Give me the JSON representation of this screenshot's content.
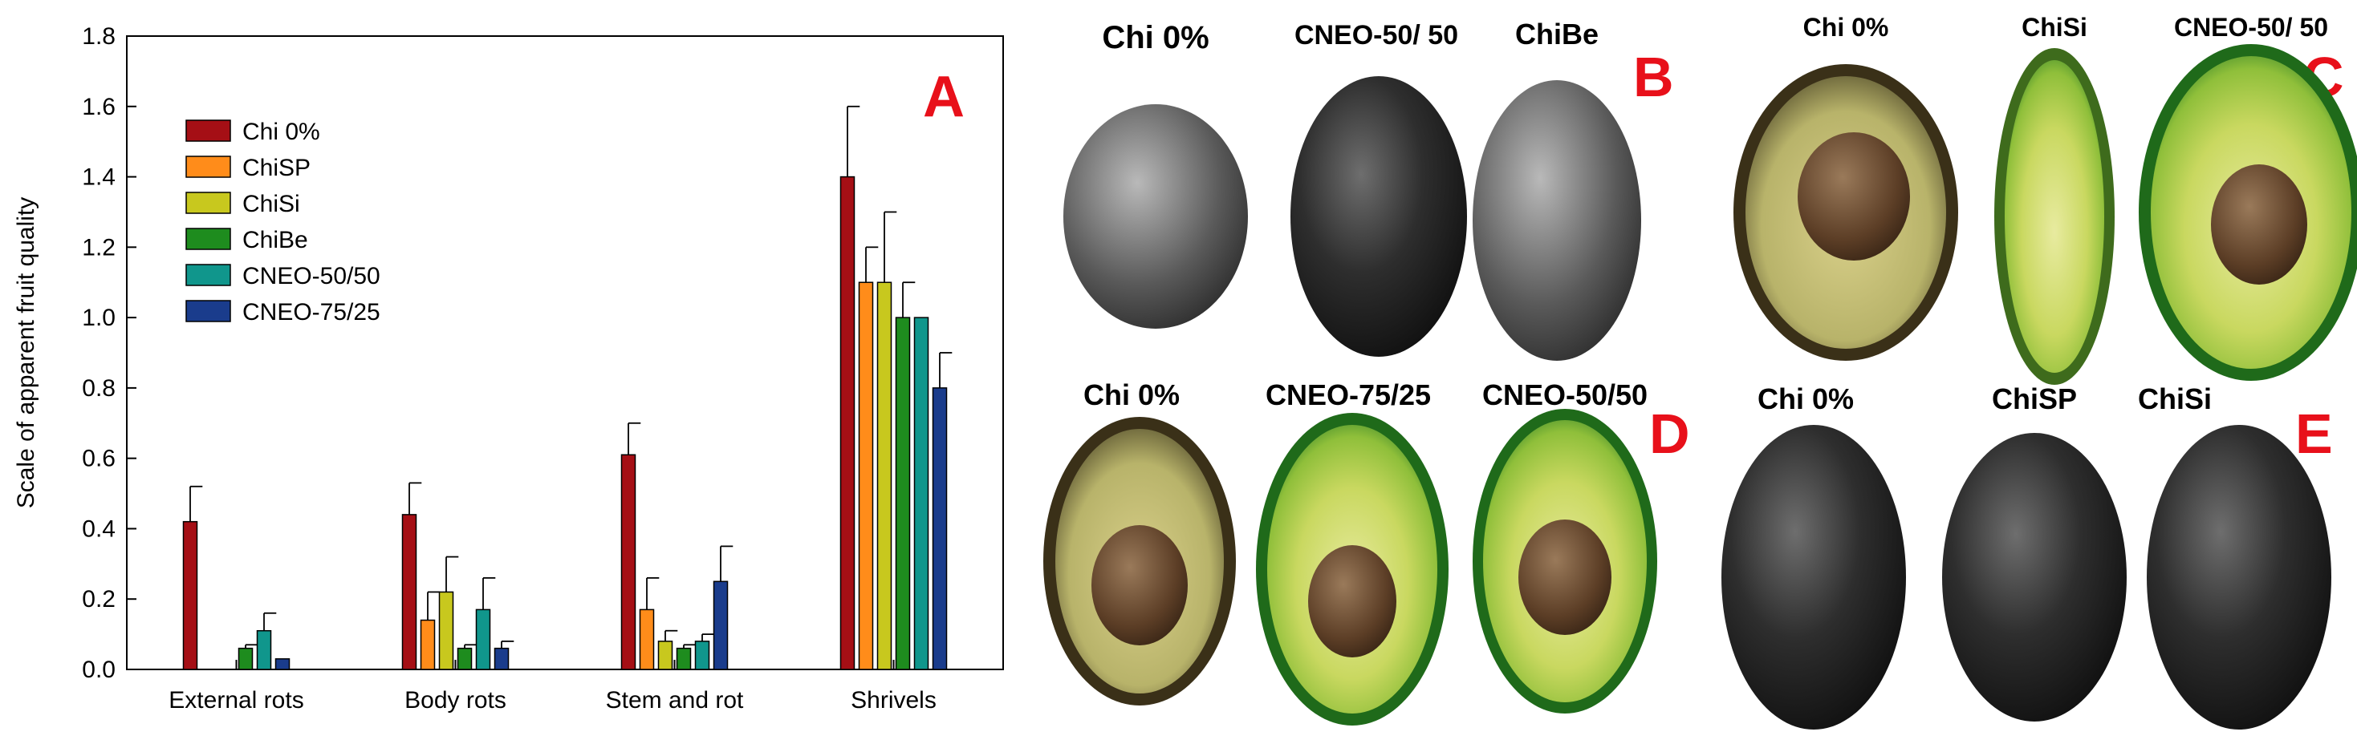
{
  "chart_data": {
    "type": "bar",
    "panel_letter": "A",
    "ylabel": "Scale of apparent fruit quality",
    "xlabel": "",
    "ylim": [
      0,
      1.8
    ],
    "yticks": [
      "0.0",
      "0.2",
      "0.4",
      "0.6",
      "0.8",
      "1.0",
      "1.2",
      "1.4",
      "1.6",
      "1.8"
    ],
    "categories": [
      "External rots",
      "Body rots",
      "Stem and rot",
      "Shrivels"
    ],
    "series": [
      {
        "name": "Chi 0%",
        "color": "#a50f15",
        "values": [
          0.42,
          0.44,
          0.61,
          1.4
        ],
        "errors": [
          0.1,
          0.09,
          0.09,
          0.2
        ]
      },
      {
        "name": "ChiSP",
        "color": "#ff8c1a",
        "values": [
          0.0,
          0.14,
          0.17,
          1.1
        ],
        "errors": [
          0.0,
          0.08,
          0.09,
          0.1
        ]
      },
      {
        "name": "ChiSi",
        "color": "#c8c81e",
        "values": [
          0.0,
          0.22,
          0.08,
          1.1
        ],
        "errors": [
          0.0,
          0.1,
          0.03,
          0.2
        ]
      },
      {
        "name": "ChiBe",
        "color": "#1e8c1e",
        "values": [
          0.06,
          0.06,
          0.06,
          1.0
        ],
        "errors": [
          0.01,
          0.01,
          0.01,
          0.1
        ]
      },
      {
        "name": "CNEO-50/50",
        "color": "#10968c",
        "values": [
          0.11,
          0.17,
          0.08,
          1.0
        ],
        "errors": [
          0.05,
          0.09,
          0.02,
          0.0
        ]
      },
      {
        "name": "CNEO-75/25",
        "color": "#1a3c8c",
        "values": [
          0.03,
          0.06,
          0.25,
          0.8
        ],
        "errors": [
          0.0,
          0.02,
          0.1,
          0.1
        ]
      }
    ]
  },
  "photos": {
    "panels": [
      {
        "letter": "B",
        "labels": [
          "Chi 0%",
          "CNEO-50/ 50",
          "ChiBe"
        ]
      },
      {
        "letter": "C",
        "labels": [
          "Chi 0%",
          "ChiSi",
          "CNEO-50/ 50"
        ]
      },
      {
        "letter": "D",
        "labels": [
          "Chi 0%",
          "CNEO-75/25",
          "CNEO-50/50"
        ]
      },
      {
        "letter": "E",
        "labels": [
          "Chi 0%",
          "ChiSP",
          "ChiSi"
        ]
      }
    ]
  }
}
